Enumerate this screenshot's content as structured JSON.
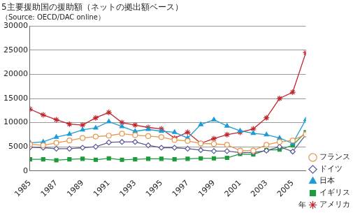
{
  "chart_data": {
    "type": "line",
    "title": "5主要援助国の援助額（ネットの拠出額ベース）",
    "subtitle": "（Source: OECD/DAC online）",
    "x_label": "年",
    "x": [
      1985,
      1986,
      1987,
      1988,
      1989,
      1990,
      1991,
      1992,
      1993,
      1994,
      1995,
      1996,
      1997,
      1998,
      1999,
      2000,
      2001,
      2002,
      2003,
      2004,
      2005,
      2006
    ],
    "xlim": [
      1985,
      2006
    ],
    "xticks": [
      1985,
      1987,
      1989,
      1991,
      1993,
      1995,
      1997,
      1999,
      2001,
      2003,
      2005
    ],
    "ylim": [
      0,
      30000
    ],
    "yticks": [
      0,
      5000,
      10000,
      15000,
      20000,
      25000,
      30000
    ],
    "grid": true,
    "legend": "right",
    "series": [
      {
        "name": "フランス",
        "color": "#e8964a",
        "marker": "circle",
        "values": [
          5500,
          5300,
          5800,
          6300,
          6800,
          7100,
          7300,
          7700,
          7400,
          7200,
          7000,
          6400,
          6200,
          5700,
          5600,
          5400,
          4200,
          4200,
          5400,
          6000,
          6300,
          7600
        ]
      },
      {
        "name": "ドイツ",
        "color": "#5a5a96",
        "marker": "diamond",
        "values": [
          4900,
          4800,
          4600,
          4600,
          4800,
          5000,
          5900,
          6000,
          6000,
          5300,
          4800,
          4800,
          4600,
          4300,
          4100,
          4100,
          3800,
          3800,
          4200,
          5000,
          4000,
          7500
        ]
      },
      {
        "name": "日本",
        "color": "#1b9bd7",
        "marker": "triangle",
        "values": [
          5800,
          6000,
          7000,
          7600,
          8500,
          8900,
          10200,
          9200,
          8200,
          8600,
          8200,
          8000,
          6800,
          9600,
          10600,
          9300,
          8300,
          7800,
          7500,
          6800,
          5700,
          10600
        ]
      },
      {
        "name": "イギリス",
        "color": "#1f9a3c",
        "marker": "square",
        "values": [
          2400,
          2400,
          2200,
          2400,
          2500,
          2300,
          2600,
          2300,
          2400,
          2500,
          2500,
          2400,
          2500,
          2600,
          2600,
          2700,
          3500,
          3400,
          4300,
          4400,
          5300,
          8000
        ]
      },
      {
        "name": "アメリカ",
        "color": "#c0282d",
        "marker": "star",
        "values": [
          12800,
          11600,
          10600,
          9700,
          9500,
          11000,
          12100,
          10000,
          9500,
          9000,
          8700,
          6800,
          8000,
          5700,
          6700,
          7500,
          8000,
          8700,
          11000,
          15000,
          16300,
          24500
        ]
      }
    ]
  }
}
